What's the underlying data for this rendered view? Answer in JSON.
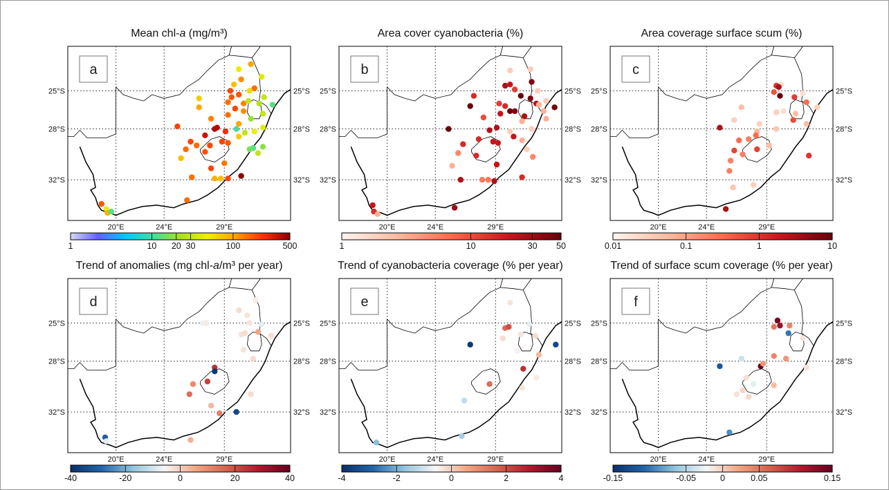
{
  "colormaps": {
    "jet": [
      "#d8d8f0",
      "#6060ff",
      "#00c8ff",
      "#40e0a0",
      "#a8e020",
      "#f0f000",
      "#ffa000",
      "#ff3000",
      "#900000"
    ],
    "reds": [
      "#fff5f0",
      "#fcbba1",
      "#fb6a4a",
      "#cb181d",
      "#67000d"
    ],
    "rdbu": [
      "#08306b",
      "#2166ac",
      "#92c5de",
      "#f7f7f7",
      "#f4a582",
      "#d6604d",
      "#b2182b",
      "#67001f"
    ]
  },
  "chart_data": [
    {
      "id": "a",
      "type": "scatter",
      "title": "Mean chl-a (mg/m³)",
      "title_main": "Mean chl-",
      "title_italic": "a",
      "title_tail": " (mg/m³)",
      "cmap": "jet",
      "scale": "log",
      "vmin": 1,
      "vmax": 500,
      "lat_labels": [
        "25°S",
        "28°S",
        "32°S"
      ],
      "lon_labels": [
        "20°E",
        "24°E",
        "29°E"
      ],
      "colorbar_ticks": [
        "1",
        "10",
        "20",
        "30",
        "100",
        "500"
      ],
      "colorbar_tick_values": [
        1,
        10,
        20,
        30,
        100,
        500
      ],
      "points": [
        [
          30.2,
          -23.3,
          45
        ],
        [
          31.2,
          -22.9,
          100
        ],
        [
          32.1,
          -23.9,
          40
        ],
        [
          29.8,
          -24.5,
          80
        ],
        [
          30.4,
          -24.1,
          120
        ],
        [
          31.5,
          -24.8,
          150
        ],
        [
          31.1,
          -25.0,
          60
        ],
        [
          29.5,
          -25.0,
          200
        ],
        [
          29.6,
          -25.5,
          180
        ],
        [
          30.2,
          -25.3,
          180
        ],
        [
          32.3,
          -25.5,
          30
        ],
        [
          26.9,
          -25.6,
          70
        ],
        [
          29.3,
          -25.9,
          150
        ],
        [
          30.6,
          -26.0,
          130
        ],
        [
          31.0,
          -25.8,
          30
        ],
        [
          31.9,
          -26.0,
          25
        ],
        [
          33.0,
          -26.1,
          12
        ],
        [
          26.9,
          -26.3,
          100
        ],
        [
          29.9,
          -26.4,
          200
        ],
        [
          29.3,
          -26.9,
          150
        ],
        [
          30.6,
          -26.6,
          120
        ],
        [
          27.9,
          -27.2,
          130
        ],
        [
          31.2,
          -27.2,
          20
        ],
        [
          32.2,
          -26.8,
          30
        ],
        [
          30.2,
          -27.6,
          100
        ],
        [
          25.1,
          -27.8,
          200
        ],
        [
          28.2,
          -28.0,
          400
        ],
        [
          28.4,
          -27.9,
          400
        ],
        [
          30.0,
          -28.0,
          10
        ],
        [
          29.1,
          -28.2,
          250
        ],
        [
          30.7,
          -28.3,
          30
        ],
        [
          31.5,
          -28.2,
          45
        ],
        [
          32.2,
          -27.9,
          40
        ],
        [
          27.4,
          -28.5,
          350
        ],
        [
          30.2,
          -28.6,
          70
        ],
        [
          26.2,
          -29.0,
          200
        ],
        [
          28.8,
          -29.0,
          200
        ],
        [
          29.3,
          -29.1,
          180
        ],
        [
          31.4,
          -29.5,
          12
        ],
        [
          31.1,
          -29.6,
          15
        ],
        [
          32.2,
          -29.4,
          18
        ],
        [
          25.8,
          -29.6,
          150
        ],
        [
          26.7,
          -29.3,
          150
        ],
        [
          27.8,
          -29.3,
          200
        ],
        [
          27.4,
          -29.8,
          180
        ],
        [
          31.8,
          -29.9,
          30
        ],
        [
          25.4,
          -30.3,
          80
        ],
        [
          27.9,
          -31.1,
          200
        ],
        [
          29.0,
          -30.7,
          140
        ],
        [
          26.3,
          -31.8,
          150
        ],
        [
          28.2,
          -31.9,
          90
        ],
        [
          28.7,
          -31.9,
          80
        ],
        [
          29.3,
          -31.9,
          200
        ],
        [
          30.4,
          -31.7,
          500
        ],
        [
          25.9,
          -33.6,
          150
        ],
        [
          18.8,
          -33.9,
          180
        ],
        [
          19.2,
          -34.3,
          50
        ],
        [
          19.3,
          -34.6,
          90
        ],
        [
          19.6,
          -34.5,
          12
        ]
      ]
    },
    {
      "id": "b",
      "type": "scatter",
      "title": "Area cover cyanobacteria (%)",
      "cmap": "reds",
      "scale": "log",
      "vmin": 1,
      "vmax": 50,
      "lat_labels": [
        "25°S",
        "28°S",
        "32°S"
      ],
      "lon_labels": [
        "20°E",
        "24°E",
        "29°E"
      ],
      "colorbar_ticks": [
        "1",
        "10",
        "30",
        "50"
      ],
      "colorbar_tick_values": [
        1,
        10,
        30,
        50
      ],
      "points": [
        [
          30.2,
          -23.4,
          2
        ],
        [
          31.9,
          -23.3,
          2
        ],
        [
          29.8,
          -24.6,
          25
        ],
        [
          30.2,
          -24.5,
          20
        ],
        [
          32.0,
          -24.3,
          40
        ],
        [
          30.6,
          -24.9,
          12
        ],
        [
          31.1,
          -25.4,
          60
        ],
        [
          32.5,
          -25.0,
          2
        ],
        [
          27.2,
          -25.4,
          15
        ],
        [
          29.3,
          -26.0,
          12
        ],
        [
          29.8,
          -26.2,
          15
        ],
        [
          31.9,
          -25.6,
          40
        ],
        [
          33.2,
          -25.8,
          2
        ],
        [
          32.4,
          -26.0,
          25
        ],
        [
          26.9,
          -26.2,
          50
        ],
        [
          30.2,
          -26.6,
          60
        ],
        [
          30.6,
          -26.6,
          40
        ],
        [
          32.6,
          -26.1,
          3
        ],
        [
          33.0,
          -26.6,
          3
        ],
        [
          33.2,
          -27.2,
          3
        ],
        [
          33.9,
          -26.3,
          45
        ],
        [
          28.0,
          -27.1,
          10
        ],
        [
          29.4,
          -26.8,
          20
        ],
        [
          31.4,
          -27.0,
          25
        ],
        [
          31.2,
          -27.4,
          3
        ],
        [
          25.1,
          -28.0,
          60
        ],
        [
          28.5,
          -28.1,
          25
        ],
        [
          29.1,
          -27.9,
          25
        ],
        [
          30.2,
          -28.2,
          2
        ],
        [
          32.0,
          -28.0,
          2
        ],
        [
          27.6,
          -28.8,
          15
        ],
        [
          30.5,
          -28.6,
          20
        ],
        [
          31.2,
          -28.9,
          3
        ],
        [
          26.3,
          -29.2,
          15
        ],
        [
          28.8,
          -29.0,
          20
        ],
        [
          29.2,
          -29.1,
          20
        ],
        [
          31.6,
          -29.6,
          2
        ],
        [
          25.9,
          -29.9,
          5
        ],
        [
          27.4,
          -30.1,
          15
        ],
        [
          32.1,
          -30.2,
          5
        ],
        [
          25.4,
          -30.9,
          3
        ],
        [
          29.1,
          -30.8,
          20
        ],
        [
          26.1,
          -32.0,
          25
        ],
        [
          27.9,
          -32.0,
          6
        ],
        [
          28.4,
          -32.0,
          6
        ],
        [
          28.9,
          -32.1,
          25
        ],
        [
          31.2,
          -31.8,
          15
        ],
        [
          25.6,
          -34.2,
          30
        ],
        [
          18.8,
          -34.0,
          20
        ],
        [
          18.9,
          -34.5,
          15
        ],
        [
          19.2,
          -34.7,
          3
        ]
      ]
    },
    {
      "id": "c",
      "type": "scatter",
      "title": "Area coverage surface scum (%)",
      "cmap": "reds",
      "scale": "log",
      "vmin": 0.01,
      "vmax": 10,
      "lat_labels": [
        "25°S",
        "28°S",
        "32°S"
      ],
      "lon_labels": [
        "20°E",
        "24°E",
        "29°E"
      ],
      "colorbar_ticks": [
        "0.01",
        "0.1",
        "1",
        "10"
      ],
      "colorbar_tick_values": [
        0.01,
        0.1,
        1,
        10
      ],
      "points": [
        [
          30.2,
          -24.5,
          0.02
        ],
        [
          29.8,
          -24.6,
          1
        ],
        [
          30.0,
          -24.7,
          3
        ],
        [
          30.1,
          -25.4,
          10
        ],
        [
          29.6,
          -25.1,
          0.5
        ],
        [
          32.0,
          -25.2,
          0.02
        ],
        [
          31.3,
          -25.5,
          0.8
        ],
        [
          32.3,
          -25.9,
          0.3
        ],
        [
          33.2,
          -26.3,
          0.03
        ],
        [
          26.9,
          -26.3,
          0.05
        ],
        [
          29.8,
          -26.7,
          0.03
        ],
        [
          30.4,
          -26.6,
          0.02
        ],
        [
          31.4,
          -26.8,
          0.05
        ],
        [
          31.2,
          -27.3,
          0.6
        ],
        [
          32.3,
          -27.6,
          0.05
        ],
        [
          26.3,
          -27.3,
          0.03
        ],
        [
          28.4,
          -27.6,
          0.03
        ],
        [
          25.1,
          -27.9,
          3
        ],
        [
          28.2,
          -28.2,
          0.06
        ],
        [
          28.1,
          -28.5,
          0.3
        ],
        [
          29.8,
          -28.0,
          0.04
        ],
        [
          27.5,
          -28.8,
          0.2
        ],
        [
          26.7,
          -28.9,
          0.3
        ],
        [
          29.2,
          -29.3,
          0.05
        ],
        [
          28.2,
          -29.6,
          0.7
        ],
        [
          26.3,
          -29.7,
          0.7
        ],
        [
          27.0,
          -30.0,
          0.2
        ],
        [
          26.0,
          -30.5,
          0.2
        ],
        [
          25.9,
          -31.3,
          0.2
        ],
        [
          32.5,
          -30.1,
          1
        ],
        [
          26.2,
          -32.6,
          0.04
        ],
        [
          27.9,
          -32.4,
          0.03
        ],
        [
          25.6,
          -34.3,
          3
        ]
      ]
    },
    {
      "id": "d",
      "type": "scatter",
      "title": "Trend of anomalies (mg chl-a/m³ per year)",
      "title_main": "Trend of anomalies (mg chl-",
      "title_italic": "a",
      "title_tail": "/m³ per year)",
      "cmap": "rdbu",
      "scale": "linear",
      "vmin": -40,
      "vmax": 40,
      "lat_labels": [
        "25°S",
        "28°S",
        "32°S"
      ],
      "lon_labels": [
        "20°E",
        "24°E",
        "29°E"
      ],
      "colorbar_ticks": [
        "-40",
        "-20",
        "0",
        "20",
        "40"
      ],
      "colorbar_tick_values": [
        -40,
        -20,
        0,
        20,
        40
      ],
      "points": [
        [
          31.6,
          -23.2,
          -4
        ],
        [
          30.2,
          -24.0,
          -2
        ],
        [
          30.9,
          -24.4,
          -3
        ],
        [
          27.2,
          -25.0,
          -7
        ],
        [
          27.5,
          -25.0,
          -4
        ],
        [
          31.1,
          -25.0,
          -3
        ],
        [
          32.1,
          -25.1,
          -8
        ],
        [
          30.4,
          -25.9,
          -3
        ],
        [
          30.7,
          -25.8,
          -2
        ],
        [
          31.8,
          -25.7,
          6
        ],
        [
          32.9,
          -26.0,
          -2
        ],
        [
          30.6,
          -27.1,
          -3
        ],
        [
          31.4,
          -27.8,
          -2
        ],
        [
          28.2,
          -28.5,
          25
        ],
        [
          28.2,
          -28.8,
          -38
        ],
        [
          27.6,
          -29.6,
          22
        ],
        [
          26.4,
          -29.8,
          10
        ],
        [
          26.1,
          -30.6,
          15
        ],
        [
          31.2,
          -30.6,
          -2
        ],
        [
          27.9,
          -31.5,
          3
        ],
        [
          28.6,
          -32.1,
          12
        ],
        [
          29.3,
          -32.1,
          -5
        ],
        [
          30.0,
          -32.0,
          -35
        ],
        [
          26.2,
          -34.2,
          4
        ],
        [
          19.1,
          -34.0,
          -30
        ],
        [
          19.2,
          -34.3,
          -8
        ]
      ]
    },
    {
      "id": "e",
      "type": "scatter",
      "title": "Trend of cyanobacteria coverage (% per year)",
      "cmap": "rdbu",
      "scale": "linear",
      "vmin": -4,
      "vmax": 4,
      "lat_labels": [
        "25°S",
        "28°S",
        "32°S"
      ],
      "lon_labels": [
        "20°E",
        "24°E",
        "29°E"
      ],
      "colorbar_ticks": [
        "-4",
        "-2",
        "0",
        "2",
        "4"
      ],
      "colorbar_tick_values": [
        -4,
        -2,
        0,
        2,
        4
      ],
      "points": [
        [
          30.2,
          -23.4,
          -0.3
        ],
        [
          29.8,
          -25.4,
          1.5
        ],
        [
          30.1,
          -25.3,
          2
        ],
        [
          31.8,
          -25.1,
          -0.8
        ],
        [
          29.6,
          -26.2,
          -0.2
        ],
        [
          26.9,
          -26.7,
          -3.8
        ],
        [
          32.3,
          -26.0,
          -0.2
        ],
        [
          31.1,
          -25.9,
          -0.3
        ],
        [
          30.8,
          -27.2,
          -0.5
        ],
        [
          34.0,
          -26.7,
          -3.5
        ],
        [
          32.6,
          -27.5,
          0.3
        ],
        [
          31.3,
          -28.6,
          2.5
        ],
        [
          28.5,
          -29.8,
          1.5
        ],
        [
          32.4,
          -29.3,
          -0.4
        ],
        [
          26.4,
          -31.1,
          -1.2
        ],
        [
          31.2,
          -30.1,
          -0.3
        ],
        [
          26.2,
          -33.9,
          -1.5
        ],
        [
          19.1,
          -34.4,
          -1.8
        ]
      ]
    },
    {
      "id": "f",
      "type": "scatter",
      "title": "Trend of surface scum coverage (% per year)",
      "cmap": "rdbu",
      "scale": "linear",
      "vmin": -0.15,
      "vmax": 0.15,
      "lat_labels": [
        "25°S",
        "28°S",
        "32°S"
      ],
      "lon_labels": [
        "20°E",
        "24°E",
        "29°E"
      ],
      "colorbar_ticks": [
        "-0.15",
        "-0.05",
        "0",
        "0.05",
        "0.15"
      ],
      "colorbar_tick_values": [
        -0.15,
        -0.05,
        0,
        0.05,
        0.15
      ],
      "points": [
        [
          29.9,
          -24.8,
          0.14
        ],
        [
          30.1,
          -25.2,
          0.12
        ],
        [
          29.6,
          -25.3,
          0.05
        ],
        [
          30.9,
          -25.2,
          0.04
        ],
        [
          30.8,
          -25.8,
          -0.1
        ],
        [
          32.0,
          -26.2,
          -0.01
        ],
        [
          26.9,
          -27.8,
          -0.04
        ],
        [
          25.1,
          -28.4,
          -0.12
        ],
        [
          29.6,
          -27.6,
          0.04
        ],
        [
          30.6,
          -27.8,
          0.03
        ],
        [
          28.5,
          -28.4,
          0.15
        ],
        [
          28.7,
          -28.2,
          0.03
        ],
        [
          27.3,
          -29.3,
          -0.01
        ],
        [
          27.9,
          -29.8,
          -0.03
        ],
        [
          27.0,
          -30.3,
          -0.005
        ],
        [
          29.6,
          -29.9,
          0.01
        ],
        [
          26.5,
          -30.6,
          -0.01
        ],
        [
          27.5,
          -30.8,
          -0.005
        ],
        [
          32.3,
          -28.5,
          -0.01
        ],
        [
          25.9,
          -33.6,
          -0.09
        ]
      ]
    }
  ]
}
